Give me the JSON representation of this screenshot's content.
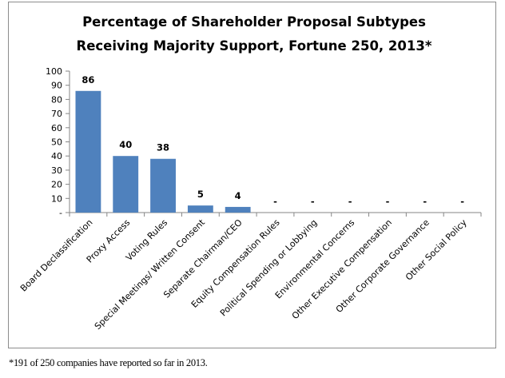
{
  "chart_data": {
    "type": "bar",
    "title": [
      "Percentage of Shareholder Proposal Subtypes",
      "Receiving Majority Support, Fortune 250, 2013*"
    ],
    "xlabel": "",
    "ylabel": "",
    "ylim": [
      0,
      100
    ],
    "yticks": [
      0,
      10,
      20,
      30,
      40,
      50,
      60,
      70,
      80,
      90,
      100
    ],
    "ytick_labels": [
      "-",
      "10",
      "20",
      "30",
      "40",
      "50",
      "60",
      "70",
      "80",
      "90",
      "100"
    ],
    "grid": false,
    "bar_color": "#4f81bd",
    "categories": [
      "Board Declassification",
      "Proxy Access",
      "Voting Rules",
      "Special Meetings/ Written Consent",
      "Separate Chairman/CEO",
      "Equity Compensation Rules",
      "Political Spending or Lobbying",
      "Environmental Concerns",
      "Other Executive Compensation",
      "Other Corporate Governance",
      "Other Social Policy"
    ],
    "values": [
      86,
      40,
      38,
      5,
      4,
      0,
      0,
      0,
      0,
      0,
      0
    ],
    "data_labels": [
      "86",
      "40",
      "38",
      "5",
      "4",
      "-",
      "-",
      "-",
      "-",
      "-",
      "-"
    ]
  },
  "footnote": "*191 of 250 companies have reported so far in 2013."
}
